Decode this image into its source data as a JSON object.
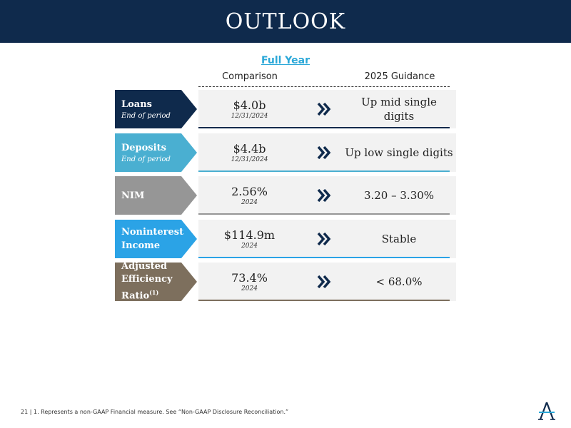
{
  "header": {
    "title": "OUTLOOK"
  },
  "section": {
    "full_year": "Full Year",
    "comparison_label": "Comparison",
    "guidance_label": "2025 Guidance"
  },
  "rows": [
    {
      "label": "Loans",
      "sublabel": "End of period",
      "comparison": "$4.0b",
      "comparison_date": "12/31/2024",
      "guidance": "Up mid single digits",
      "color": "#0f2a4c"
    },
    {
      "label": "Deposits",
      "sublabel": "End of period",
      "comparison": "$4.4b",
      "comparison_date": "12/31/2024",
      "guidance": "Up low single digits",
      "color": "#4aafd1"
    },
    {
      "label": "NIM",
      "sublabel": "",
      "comparison": "2.56%",
      "comparison_date": "2024",
      "guidance": "3.20 – 3.30%",
      "color": "#969696"
    },
    {
      "label": "Noninterest Income",
      "sublabel": "",
      "comparison": "$114.9m",
      "comparison_date": "2024",
      "guidance": "Stable",
      "color": "#2ba3e6"
    },
    {
      "label": "Adjusted Efficiency Ratio",
      "label_superscript": "(1)",
      "sublabel": "",
      "comparison": "73.4%",
      "comparison_date": "2024",
      "guidance": "< 68.0%",
      "color": "#7d6f5d"
    }
  ],
  "chevron_icon": "double-chevron-right-icon",
  "footer": {
    "page_number": "21",
    "separator": "|",
    "note": "1. Represents a non-GAAP Financial measure. See “Non-GAAP Disclosure Reconciliation.”"
  },
  "logo_icon": "company-a-logo-icon",
  "colors": {
    "header_bg": "#0f2a4c",
    "accent": "#2ba8d8",
    "chevron": "#0f2a4c"
  }
}
